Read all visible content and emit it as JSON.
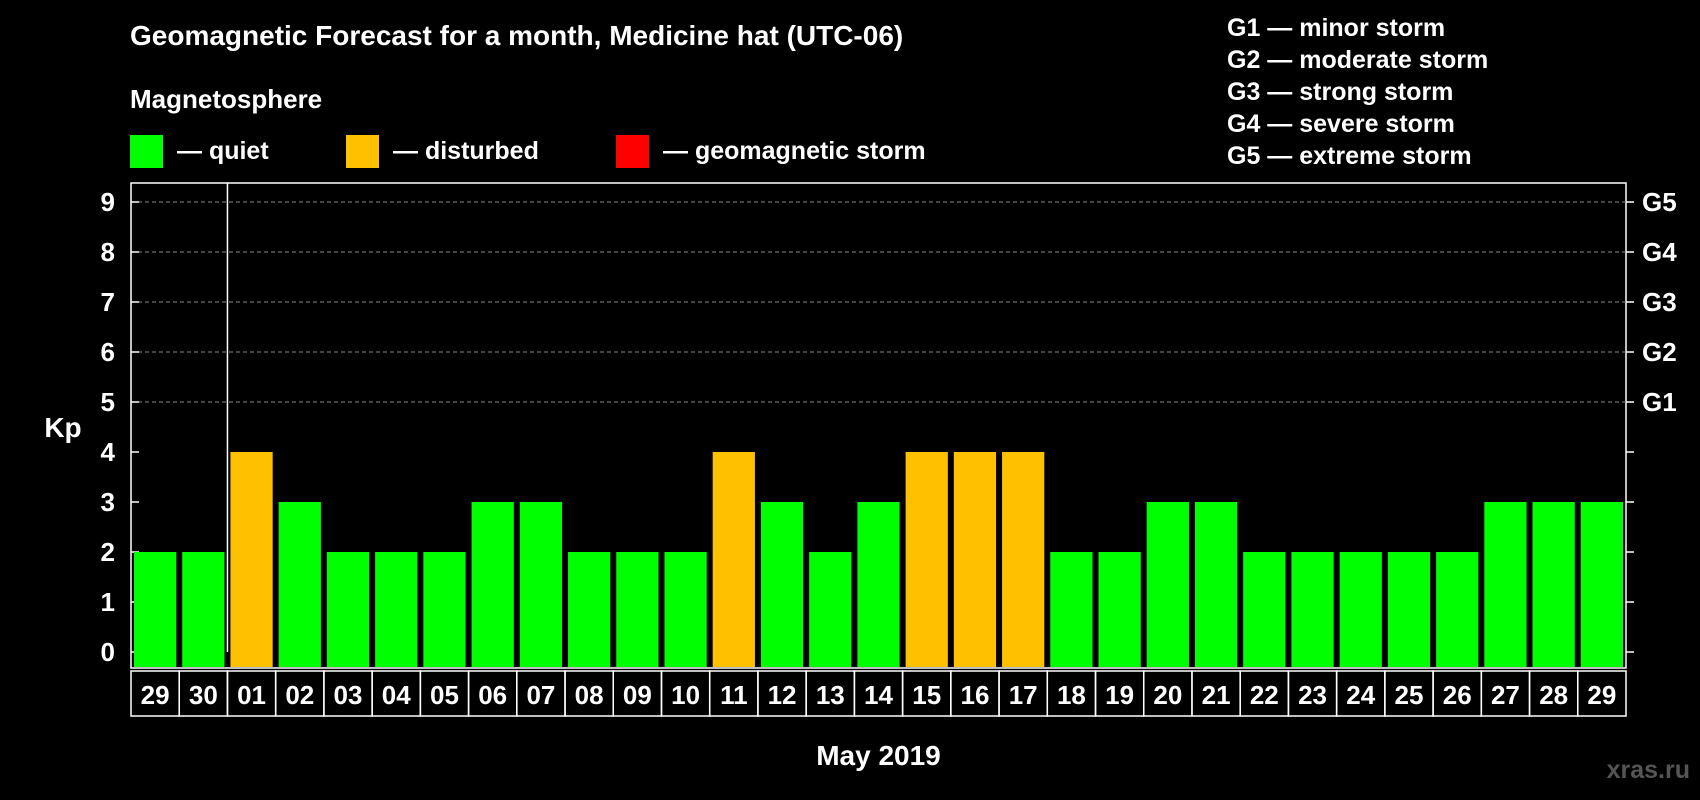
{
  "title": "Geomagnetic Forecast for a month, Medicine hat (UTC-06)",
  "subtitle": "Magnetosphere",
  "legend": [
    {
      "label": "— quiet",
      "color": "#00ff00"
    },
    {
      "label": "— disturbed",
      "color": "#ffc000"
    },
    {
      "label": "— geomagnetic storm",
      "color": "#ff0000"
    }
  ],
  "storm_legend": [
    "G1 — minor storm",
    "G2 — moderate storm",
    "G3 — strong storm",
    "G4 — severe storm",
    "G5 — extreme storm"
  ],
  "watermark": "xras.ru",
  "colors": {
    "quiet": "#00ff00",
    "disturbed": "#ffc000",
    "storm": "#ff0000",
    "background": "#000000",
    "axis": "#ffffff",
    "grid": "#888888"
  },
  "chart_data": {
    "type": "bar",
    "title": "Geomagnetic Forecast for a month, Medicine hat (UTC-06)",
    "xlabel": "May 2019",
    "ylabel": "Kp",
    "ylim": [
      0,
      9
    ],
    "yticks": [
      "0",
      "1",
      "2",
      "3",
      "4",
      "5",
      "6",
      "7",
      "8",
      "9"
    ],
    "right_labels": [
      {
        "kp": 5,
        "label": "G1"
      },
      {
        "kp": 6,
        "label": "G2"
      },
      {
        "kp": 7,
        "label": "G3"
      },
      {
        "kp": 8,
        "label": "G4"
      },
      {
        "kp": 9,
        "label": "G5"
      }
    ],
    "grid_from_kp": 5,
    "month_divider_after_index": 1,
    "categories": [
      "29",
      "30",
      "01",
      "02",
      "03",
      "04",
      "05",
      "06",
      "07",
      "08",
      "09",
      "10",
      "11",
      "12",
      "13",
      "14",
      "15",
      "16",
      "17",
      "18",
      "19",
      "20",
      "21",
      "22",
      "23",
      "24",
      "25",
      "26",
      "27",
      "28",
      "29"
    ],
    "values": [
      2,
      2,
      4,
      3,
      2,
      2,
      2,
      3,
      3,
      2,
      2,
      2,
      4,
      3,
      2,
      3,
      4,
      4,
      4,
      2,
      2,
      3,
      3,
      2,
      2,
      2,
      2,
      2,
      3,
      3,
      3
    ],
    "status": [
      "quiet",
      "quiet",
      "disturbed",
      "quiet",
      "quiet",
      "quiet",
      "quiet",
      "quiet",
      "quiet",
      "quiet",
      "quiet",
      "quiet",
      "disturbed",
      "quiet",
      "quiet",
      "quiet",
      "disturbed",
      "disturbed",
      "disturbed",
      "quiet",
      "quiet",
      "quiet",
      "quiet",
      "quiet",
      "quiet",
      "quiet",
      "quiet",
      "quiet",
      "quiet",
      "quiet",
      "quiet"
    ]
  }
}
